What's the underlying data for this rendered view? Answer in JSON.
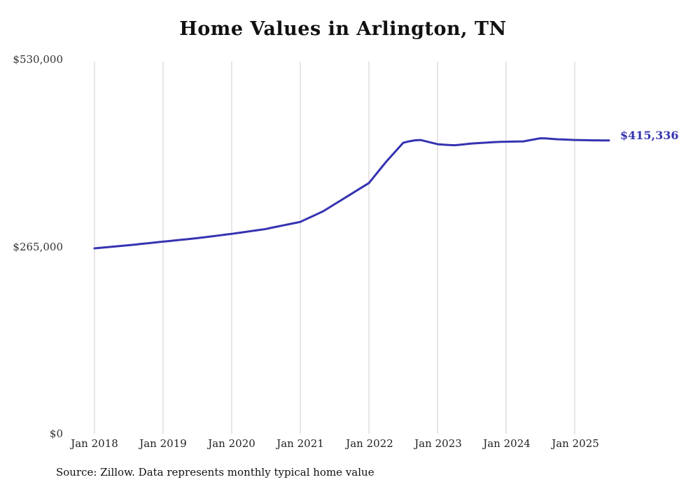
{
  "title": "Home Values in Arlington, TN",
  "end_label": "$415,336",
  "source": "Source: Zillow. Data represents monthly typical home value",
  "colors": {
    "line": "#3533b1",
    "grid": "#cccccc",
    "end_label": "#3533b1",
    "text": "#111111"
  },
  "chart_data": {
    "type": "line",
    "title": "Home Values in Arlington, TN",
    "x_unit": "month",
    "x_start": "Jan 2018",
    "x_end": "Jul 2025",
    "ylim": [
      0,
      530000
    ],
    "grid": "vertical-only",
    "x_tick_labels": [
      "Jan 2018",
      "Jan 2019",
      "Jan 2020",
      "Jan 2021",
      "Jan 2022",
      "Jan 2023",
      "Jan 2024",
      "Jan 2025"
    ],
    "y_tick_labels": [
      "$530,000",
      "$265,000",
      "$0"
    ],
    "end_value": 415336,
    "values": [
      262500,
      263300,
      264000,
      264800,
      265500,
      266300,
      267000,
      267800,
      268700,
      269500,
      270300,
      271200,
      272000,
      272800,
      273700,
      274500,
      275300,
      276200,
      277000,
      278000,
      279000,
      280000,
      281000,
      282000,
      283000,
      284200,
      285300,
      286500,
      287700,
      288800,
      290000,
      291700,
      293300,
      295000,
      296700,
      298300,
      300000,
      303800,
      307500,
      311300,
      315000,
      320000,
      325000,
      330000,
      335000,
      340000,
      345000,
      350000,
      355000,
      365000,
      375000,
      385000,
      394000,
      403000,
      412000,
      414000,
      415500,
      416000,
      414000,
      412000,
      410000,
      409300,
      408800,
      408500,
      409200,
      410100,
      411000,
      411500,
      412000,
      412500,
      413000,
      413300,
      413500,
      413700,
      413900,
      414000,
      415500,
      417000,
      418500,
      418200,
      417600,
      417000,
      416700,
      416300,
      416000,
      415800,
      415700,
      415500,
      415450,
      415400,
      415336
    ]
  }
}
